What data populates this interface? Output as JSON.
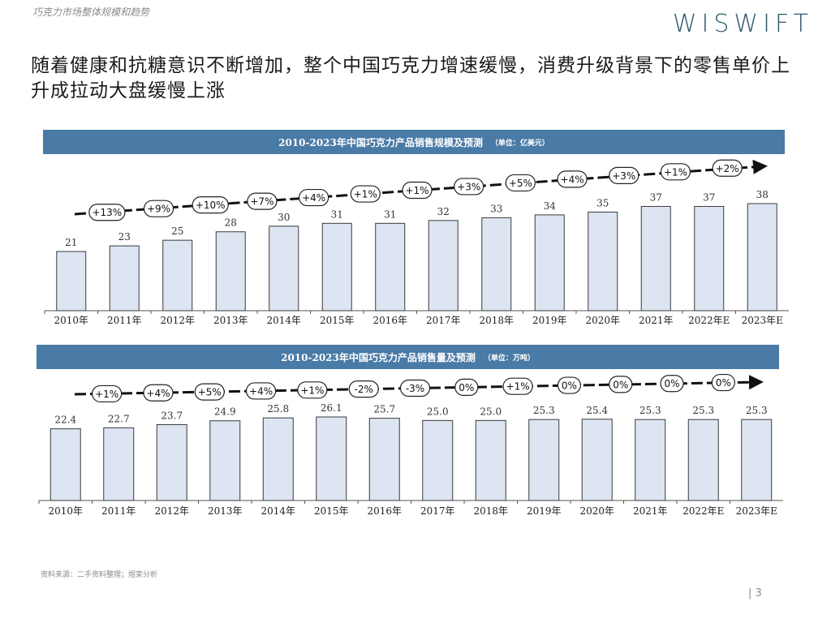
{
  "header": {
    "section": "巧克力市场整体规模和趋势",
    "logo": "WISWIFT"
  },
  "headline": "随着健康和抗糖意识不断增加，整个中国巧克力增速缓慢，消费升级背景下的零售单价上升成拉动大盘缓慢上涨",
  "footer": {
    "source": "资料来源：二手资料整理；煜寀分析",
    "page": "| 3"
  },
  "colors": {
    "title_bar": "#4a7aa6",
    "bar_fill": "#dce5f1",
    "bar_stroke": "#3a3a3a",
    "arrow": "#111111"
  },
  "chart_data": [
    {
      "type": "bar",
      "title": "2010-2023年中国巧克力产品销售规模及预测",
      "unit": "（单位：亿美元）",
      "categories": [
        "2010年",
        "2011年",
        "2012年",
        "2013年",
        "2014年",
        "2015年",
        "2016年",
        "2017年",
        "2018年",
        "2019年",
        "2020年",
        "2021年",
        "2022年E",
        "2023年E"
      ],
      "values": [
        21,
        23,
        25,
        28,
        30,
        31,
        31,
        32,
        33,
        34,
        35,
        37,
        37,
        38
      ],
      "value_labels": [
        "21",
        "23",
        "25",
        "28",
        "30",
        "31",
        "31",
        "32",
        "33",
        "34",
        "35",
        "37",
        "37",
        "38"
      ],
      "growth_labels": [
        "+13%",
        "+9%",
        "+10%",
        "+7%",
        "+4%",
        "+1%",
        "+1%",
        "+3%",
        "+5%",
        "+4%",
        "+3%",
        "+1%",
        "+2%"
      ],
      "ylim": [
        0,
        38
      ]
    },
    {
      "type": "bar",
      "title": "2010-2023年中国巧克力产品销售量及预测",
      "unit": "（单位：万吨）",
      "categories": [
        "2010年",
        "2011年",
        "2012年",
        "2013年",
        "2014年",
        "2015年",
        "2016年",
        "2017年",
        "2018年",
        "2019年",
        "2020年",
        "2021年",
        "2022年E",
        "2023年E"
      ],
      "values": [
        22.4,
        22.7,
        23.7,
        24.9,
        25.8,
        26.1,
        25.7,
        25.0,
        25.0,
        25.3,
        25.4,
        25.3,
        25.3,
        25.3
      ],
      "value_labels": [
        "22.4",
        "22.7",
        "23.7",
        "24.9",
        "25.8",
        "26.1",
        "25.7",
        "25.0",
        "25.0",
        "25.3",
        "25.4",
        "25.3",
        "25.3",
        "25.3"
      ],
      "growth_labels": [
        "+1%",
        "+4%",
        "+5%",
        "+4%",
        "+1%",
        "-2%",
        "-3%",
        "0%",
        "+1%",
        "0%",
        "0%",
        "0%",
        "0%"
      ],
      "ylim": [
        0,
        26.1
      ]
    }
  ]
}
